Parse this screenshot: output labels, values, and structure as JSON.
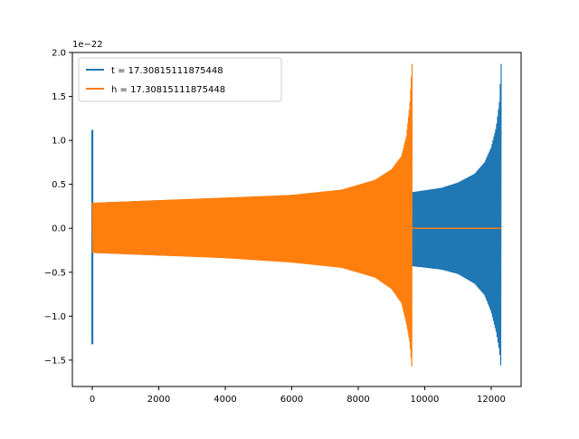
{
  "chart_data": {
    "type": "line",
    "title": "",
    "xlabel": "",
    "ylabel": "",
    "y_offset_text": "1e−22",
    "xlim": [
      -600,
      12900
    ],
    "ylim": [
      -1.8,
      2.0
    ],
    "x_ticks": [
      {
        "value": 0,
        "label": "0"
      },
      {
        "value": 2000,
        "label": "2000"
      },
      {
        "value": 4000,
        "label": "4000"
      },
      {
        "value": 6000,
        "label": "6000"
      },
      {
        "value": 8000,
        "label": "8000"
      },
      {
        "value": 10000,
        "label": "10000"
      },
      {
        "value": 12000,
        "label": "12000"
      }
    ],
    "y_ticks": [
      {
        "value": -1.5,
        "label": "−1.5"
      },
      {
        "value": -1.0,
        "label": "−1.0"
      },
      {
        "value": -0.5,
        "label": "−0.5"
      },
      {
        "value": 0.0,
        "label": "0.0"
      },
      {
        "value": 0.5,
        "label": "0.5"
      },
      {
        "value": 1.0,
        "label": "1.0"
      },
      {
        "value": 1.5,
        "label": "1.5"
      },
      {
        "value": 2.0,
        "label": "2.0"
      }
    ],
    "grid": false,
    "legend_position": "upper-left",
    "series": [
      {
        "name": "t = 17.30815111875448",
        "color": "#1f77b4",
        "kind": "oscillating-envelope",
        "spike": {
          "x": 0,
          "y_max": 1.12,
          "y_min": -1.32
        },
        "envelope": [
          {
            "x": 0,
            "upper": 0.29,
            "lower": -0.28
          },
          {
            "x": 2000,
            "upper": 0.32,
            "lower": -0.31
          },
          {
            "x": 4000,
            "upper": 0.34,
            "lower": -0.33
          },
          {
            "x": 6000,
            "upper": 0.38,
            "lower": -0.37
          },
          {
            "x": 8000,
            "upper": 0.44,
            "lower": -0.43
          },
          {
            "x": 9600,
            "upper": 0.41,
            "lower": -0.43
          },
          {
            "x": 10500,
            "upper": 0.46,
            "lower": -0.47
          },
          {
            "x": 11000,
            "upper": 0.52,
            "lower": -0.52
          },
          {
            "x": 11500,
            "upper": 0.62,
            "lower": -0.63
          },
          {
            "x": 11800,
            "upper": 0.75,
            "lower": -0.76
          },
          {
            "x": 12000,
            "upper": 0.92,
            "lower": -0.95
          },
          {
            "x": 12150,
            "upper": 1.15,
            "lower": -1.18
          },
          {
            "x": 12250,
            "upper": 1.45,
            "lower": -1.4
          },
          {
            "x": 12300,
            "upper": 1.87,
            "lower": -1.62
          }
        ],
        "tail": [
          [
            12300,
            0.0
          ],
          [
            12310,
            0.0
          ]
        ]
      },
      {
        "name": "h = 17.30815111875448",
        "color": "#ff7f0e",
        "kind": "oscillating-envelope",
        "envelope": [
          {
            "x": 0,
            "upper": 0.29,
            "lower": -0.28
          },
          {
            "x": 2000,
            "upper": 0.32,
            "lower": -0.31
          },
          {
            "x": 4000,
            "upper": 0.35,
            "lower": -0.34
          },
          {
            "x": 6000,
            "upper": 0.38,
            "lower": -0.39
          },
          {
            "x": 7500,
            "upper": 0.44,
            "lower": -0.45
          },
          {
            "x": 8500,
            "upper": 0.55,
            "lower": -0.56
          },
          {
            "x": 9000,
            "upper": 0.67,
            "lower": -0.69
          },
          {
            "x": 9300,
            "upper": 0.82,
            "lower": -0.85
          },
          {
            "x": 9450,
            "upper": 1.05,
            "lower": -1.08
          },
          {
            "x": 9550,
            "upper": 1.4,
            "lower": -1.3
          },
          {
            "x": 9620,
            "upper": 1.87,
            "lower": -1.62
          }
        ],
        "tail": [
          [
            9620,
            0.0
          ],
          [
            12300,
            0.0
          ]
        ]
      }
    ]
  }
}
